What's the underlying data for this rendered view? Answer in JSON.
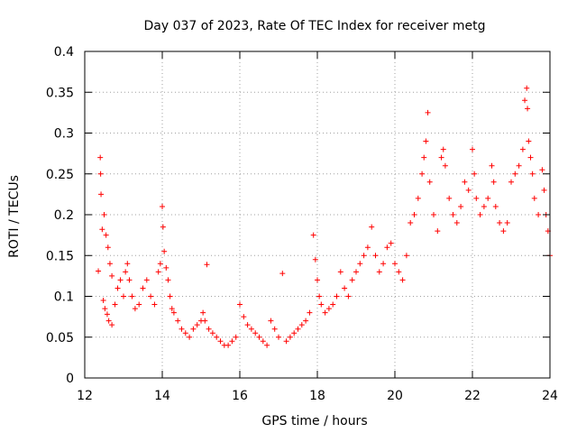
{
  "chart_data": {
    "type": "scatter",
    "title": "Day 037 of 2023, Rate Of TEC Index for receiver metg",
    "xlabel": "GPS time / hours",
    "ylabel": "ROTI / TECUs",
    "xlim": [
      12,
      24
    ],
    "ylim": [
      0,
      0.4
    ],
    "x_ticks": [
      "12",
      "14",
      "16",
      "18",
      "20",
      "22",
      "24"
    ],
    "y_ticks": [
      "0",
      "0.05",
      "0.1",
      "0.15",
      "0.2",
      "0.25",
      "0.3",
      "0.35",
      "0.4"
    ],
    "grid": true,
    "marker": "+",
    "color": "#ff0000",
    "series": [
      {
        "values": [
          [
            12.35,
            0.131
          ],
          [
            12.4,
            0.27
          ],
          [
            12.41,
            0.25
          ],
          [
            12.42,
            0.225
          ],
          [
            12.45,
            0.182
          ],
          [
            12.5,
            0.2
          ],
          [
            12.55,
            0.175
          ],
          [
            12.6,
            0.16
          ],
          [
            12.65,
            0.14
          ],
          [
            12.7,
            0.125
          ],
          [
            12.48,
            0.095
          ],
          [
            12.52,
            0.085
          ],
          [
            12.58,
            0.078
          ],
          [
            12.62,
            0.07
          ],
          [
            12.7,
            0.065
          ],
          [
            12.78,
            0.09
          ],
          [
            12.85,
            0.11
          ],
          [
            12.92,
            0.12
          ],
          [
            13.0,
            0.1
          ],
          [
            13.05,
            0.13
          ],
          [
            13.1,
            0.14
          ],
          [
            13.15,
            0.12
          ],
          [
            13.22,
            0.1
          ],
          [
            13.3,
            0.085
          ],
          [
            13.4,
            0.09
          ],
          [
            13.5,
            0.11
          ],
          [
            13.6,
            0.12
          ],
          [
            13.7,
            0.1
          ],
          [
            13.8,
            0.09
          ],
          [
            13.9,
            0.13
          ],
          [
            13.95,
            0.14
          ],
          [
            14.0,
            0.21
          ],
          [
            14.02,
            0.185
          ],
          [
            14.05,
            0.155
          ],
          [
            14.1,
            0.135
          ],
          [
            14.15,
            0.12
          ],
          [
            14.2,
            0.1
          ],
          [
            14.25,
            0.085
          ],
          [
            14.3,
            0.08
          ],
          [
            14.4,
            0.07
          ],
          [
            14.5,
            0.06
          ],
          [
            14.6,
            0.055
          ],
          [
            14.7,
            0.05
          ],
          [
            14.8,
            0.06
          ],
          [
            14.9,
            0.065
          ],
          [
            15.0,
            0.07
          ],
          [
            15.05,
            0.08
          ],
          [
            15.1,
            0.07
          ],
          [
            15.15,
            0.139
          ],
          [
            15.2,
            0.06
          ],
          [
            15.3,
            0.055
          ],
          [
            15.4,
            0.05
          ],
          [
            15.5,
            0.045
          ],
          [
            15.6,
            0.04
          ],
          [
            15.7,
            0.04
          ],
          [
            15.8,
            0.045
          ],
          [
            15.9,
            0.05
          ],
          [
            16.0,
            0.09
          ],
          [
            16.1,
            0.075
          ],
          [
            16.2,
            0.065
          ],
          [
            16.3,
            0.06
          ],
          [
            16.4,
            0.055
          ],
          [
            16.5,
            0.05
          ],
          [
            16.6,
            0.045
          ],
          [
            16.7,
            0.04
          ],
          [
            16.8,
            0.07
          ],
          [
            16.9,
            0.06
          ],
          [
            17.0,
            0.05
          ],
          [
            17.1,
            0.128
          ],
          [
            17.2,
            0.045
          ],
          [
            17.3,
            0.05
          ],
          [
            17.4,
            0.055
          ],
          [
            17.5,
            0.06
          ],
          [
            17.6,
            0.065
          ],
          [
            17.7,
            0.07
          ],
          [
            17.8,
            0.08
          ],
          [
            17.9,
            0.175
          ],
          [
            17.95,
            0.145
          ],
          [
            18.0,
            0.12
          ],
          [
            18.05,
            0.1
          ],
          [
            18.1,
            0.09
          ],
          [
            18.2,
            0.08
          ],
          [
            18.3,
            0.085
          ],
          [
            18.4,
            0.09
          ],
          [
            18.5,
            0.1
          ],
          [
            18.6,
            0.13
          ],
          [
            18.7,
            0.11
          ],
          [
            18.8,
            0.1
          ],
          [
            18.9,
            0.12
          ],
          [
            19.0,
            0.13
          ],
          [
            19.1,
            0.14
          ],
          [
            19.2,
            0.15
          ],
          [
            19.3,
            0.16
          ],
          [
            19.4,
            0.185
          ],
          [
            19.5,
            0.15
          ],
          [
            19.6,
            0.13
          ],
          [
            19.7,
            0.14
          ],
          [
            19.8,
            0.16
          ],
          [
            19.9,
            0.165
          ],
          [
            20.0,
            0.14
          ],
          [
            20.1,
            0.13
          ],
          [
            20.2,
            0.12
          ],
          [
            20.3,
            0.15
          ],
          [
            20.4,
            0.19
          ],
          [
            20.5,
            0.2
          ],
          [
            20.6,
            0.22
          ],
          [
            20.7,
            0.25
          ],
          [
            20.75,
            0.27
          ],
          [
            20.8,
            0.29
          ],
          [
            20.85,
            0.325
          ],
          [
            20.9,
            0.24
          ],
          [
            21.0,
            0.2
          ],
          [
            21.1,
            0.18
          ],
          [
            21.2,
            0.27
          ],
          [
            21.25,
            0.28
          ],
          [
            21.3,
            0.26
          ],
          [
            21.4,
            0.22
          ],
          [
            21.5,
            0.2
          ],
          [
            21.6,
            0.19
          ],
          [
            21.7,
            0.21
          ],
          [
            21.8,
            0.24
          ],
          [
            21.9,
            0.23
          ],
          [
            22.0,
            0.28
          ],
          [
            22.05,
            0.25
          ],
          [
            22.1,
            0.22
          ],
          [
            22.2,
            0.2
          ],
          [
            22.3,
            0.21
          ],
          [
            22.4,
            0.22
          ],
          [
            22.5,
            0.26
          ],
          [
            22.55,
            0.24
          ],
          [
            22.6,
            0.21
          ],
          [
            22.7,
            0.19
          ],
          [
            22.8,
            0.18
          ],
          [
            22.9,
            0.19
          ],
          [
            23.0,
            0.24
          ],
          [
            23.1,
            0.25
          ],
          [
            23.2,
            0.26
          ],
          [
            23.3,
            0.28
          ],
          [
            23.35,
            0.34
          ],
          [
            23.4,
            0.355
          ],
          [
            23.42,
            0.33
          ],
          [
            23.45,
            0.29
          ],
          [
            23.5,
            0.27
          ],
          [
            23.55,
            0.25
          ],
          [
            23.6,
            0.22
          ],
          [
            23.7,
            0.2
          ],
          [
            23.8,
            0.255
          ],
          [
            23.85,
            0.23
          ],
          [
            23.9,
            0.2
          ],
          [
            23.95,
            0.18
          ],
          [
            24.0,
            0.15
          ]
        ]
      }
    ]
  }
}
